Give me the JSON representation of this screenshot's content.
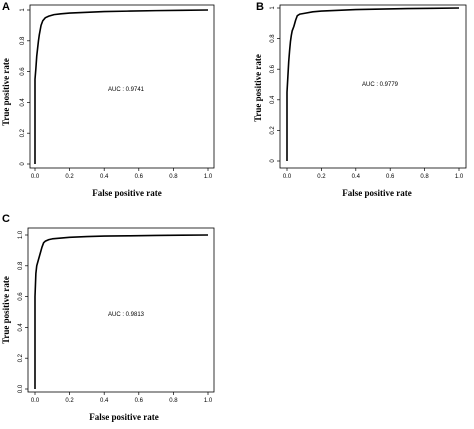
{
  "chart_data": [
    {
      "panel": "A",
      "type": "line",
      "xlabel": "False positive rate",
      "ylabel": "True positive rate",
      "xlim": [
        0,
        1
      ],
      "ylim": [
        0,
        1
      ],
      "xticks": [
        "0.0",
        "0.2",
        "0.4",
        "0.6",
        "0.8",
        "1.0"
      ],
      "yticks": [
        "0",
        "0.2",
        "0.4",
        "0.6",
        "0.8",
        "1"
      ],
      "annotation": "AUC : 0.9741",
      "grid": false,
      "series": [
        {
          "x": [
            0,
            0,
            0.005,
            0.01,
            0.015,
            0.02,
            0.025,
            0.03,
            0.035,
            0.045,
            0.06,
            0.08,
            0.11,
            0.15,
            0.2,
            0.3,
            0.4,
            0.55,
            0.7,
            0.85,
            1.0
          ],
          "y": [
            0,
            0.55,
            0.62,
            0.7,
            0.75,
            0.8,
            0.84,
            0.87,
            0.9,
            0.93,
            0.95,
            0.96,
            0.97,
            0.975,
            0.98,
            0.985,
            0.99,
            0.993,
            0.996,
            0.998,
            1.0
          ]
        }
      ]
    },
    {
      "panel": "B",
      "type": "line",
      "xlabel": "False positive rate",
      "ylabel": "True positive rate",
      "xlim": [
        0,
        1
      ],
      "ylim": [
        0,
        1
      ],
      "xticks": [
        "0.0",
        "0.2",
        "0.4",
        "0.6",
        "0.8",
        "1.0"
      ],
      "yticks": [
        "0",
        "0.2",
        "0.4",
        "0.6",
        "0.8",
        "1"
      ],
      "annotation": "AUC : 0.9779",
      "grid": false,
      "series": [
        {
          "x": [
            0,
            0,
            0.005,
            0.01,
            0.015,
            0.02,
            0.025,
            0.03,
            0.04,
            0.05,
            0.06,
            0.075,
            0.1,
            0.15,
            0.2,
            0.3,
            0.4,
            0.55,
            0.7,
            0.85,
            1.0
          ],
          "y": [
            0,
            0.45,
            0.55,
            0.65,
            0.72,
            0.78,
            0.82,
            0.85,
            0.88,
            0.92,
            0.95,
            0.96,
            0.965,
            0.975,
            0.98,
            0.985,
            0.99,
            0.993,
            0.996,
            0.998,
            1.0
          ]
        }
      ]
    },
    {
      "panel": "C",
      "type": "line",
      "xlabel": "False positive rate",
      "ylabel": "True positive rate",
      "xlim": [
        0,
        1
      ],
      "ylim": [
        0,
        1
      ],
      "xticks": [
        "0.0",
        "0.2",
        "0.4",
        "0.6",
        "0.8",
        "1.0"
      ],
      "yticks": [
        "0.0",
        "0.2",
        "0.4",
        "0.6",
        "0.8",
        "1.0"
      ],
      "annotation": "AUC : 0.9813",
      "grid": false,
      "series": [
        {
          "x": [
            0,
            0,
            0.005,
            0.01,
            0.02,
            0.03,
            0.04,
            0.05,
            0.06,
            0.08,
            0.1,
            0.15,
            0.2,
            0.3,
            0.4,
            0.55,
            0.7,
            0.85,
            1.0
          ],
          "y": [
            0,
            0.6,
            0.75,
            0.8,
            0.84,
            0.88,
            0.92,
            0.95,
            0.96,
            0.97,
            0.975,
            0.98,
            0.985,
            0.99,
            0.993,
            0.995,
            0.997,
            0.999,
            1.0
          ]
        }
      ]
    }
  ]
}
